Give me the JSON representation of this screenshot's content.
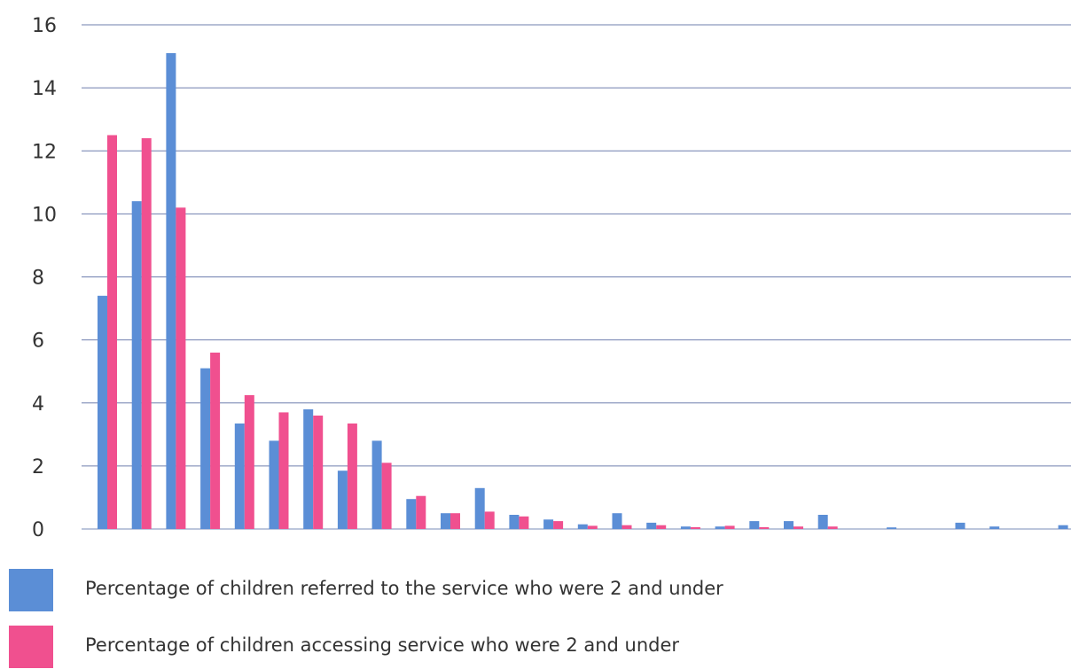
{
  "chart_data": {
    "type": "bar",
    "title": "",
    "xlabel": "",
    "ylabel": "",
    "ylim": [
      0,
      16
    ],
    "yticks": [
      "0",
      "2",
      "4",
      "6",
      "8",
      "10",
      "12",
      "14",
      "16"
    ],
    "grid": true,
    "legend_position": "bottom",
    "categories": [
      "",
      "",
      "",
      "",
      "",
      "",
      "",
      "",
      "",
      "",
      "",
      "",
      "",
      "",
      "",
      "",
      "",
      "",
      "",
      "",
      "",
      "",
      "",
      "",
      "",
      "",
      "",
      "",
      ""
    ],
    "series": [
      {
        "name": "Percentage of children referred to the service who were 2 and under",
        "color": "#5b8ed6",
        "values": [
          7.4,
          10.4,
          15.1,
          5.1,
          3.35,
          2.8,
          3.8,
          1.85,
          2.8,
          0.95,
          0.5,
          1.3,
          0.45,
          0.3,
          0.15,
          0.5,
          0.2,
          0.08,
          0.08,
          0.25,
          0.25,
          0.45,
          0,
          0.05,
          0,
          0.2,
          0.08,
          0,
          0.12
        ]
      },
      {
        "name": "Percentage of children accessing service who were 2 and under",
        "color": "#f0508f",
        "values": [
          12.5,
          12.4,
          10.2,
          5.6,
          4.25,
          3.7,
          3.6,
          3.35,
          2.1,
          1.05,
          0.5,
          0.55,
          0.4,
          0.25,
          0.1,
          0.12,
          0.12,
          0.06,
          0.1,
          0.06,
          0.08,
          0.08,
          0,
          0,
          0,
          0,
          0,
          0,
          0
        ]
      }
    ]
  }
}
